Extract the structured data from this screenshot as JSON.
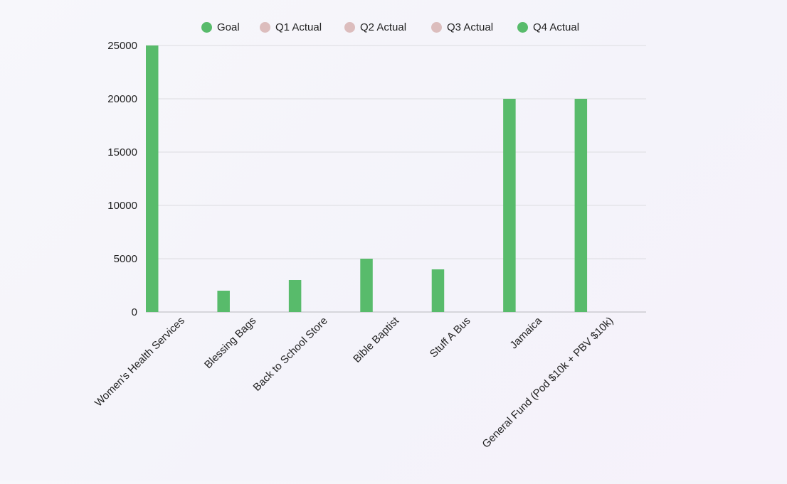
{
  "chart_data": {
    "type": "bar",
    "categories": [
      "Women's Health Services",
      "Blessing Bags",
      "Back to School Store",
      "Bible Baptist",
      "Stuff A Bus",
      "Jamaica",
      "General Fund (Pod $10k + PBV $10k)"
    ],
    "series": [
      {
        "name": "Goal",
        "color": "#58bb6b",
        "values": [
          25000,
          2000,
          3000,
          5000,
          4000,
          20000,
          20000
        ]
      },
      {
        "name": "Q1 Actual",
        "color": "#dcbdbd",
        "values": [
          0,
          0,
          0,
          0,
          0,
          0,
          0
        ]
      },
      {
        "name": "Q2 Actual",
        "color": "#dcbdbd",
        "values": [
          0,
          0,
          0,
          0,
          0,
          0,
          0
        ]
      },
      {
        "name": "Q3 Actual",
        "color": "#dcbdbd",
        "values": [
          0,
          0,
          0,
          0,
          0,
          0,
          0
        ]
      },
      {
        "name": "Q4 Actual",
        "color": "#58bb6b",
        "values": [
          0,
          0,
          0,
          0,
          0,
          0,
          0
        ]
      }
    ],
    "y_ticks": [
      "0",
      "5000",
      "10000",
      "15000",
      "20000",
      "25000"
    ],
    "ylim": [
      0,
      25000
    ],
    "title": "",
    "xlabel": "",
    "ylabel": "",
    "grid": true,
    "legend_position": "top-center"
  }
}
